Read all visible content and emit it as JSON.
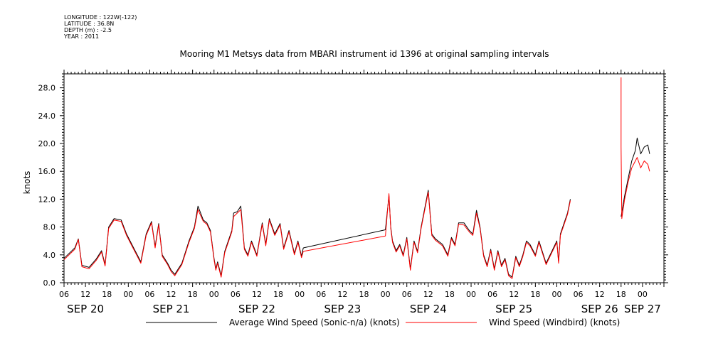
{
  "header": {
    "longitude": "LONGITUDE : 122W(-122)",
    "latitude": "LATITUDE : 36.8N",
    "depth": "DEPTH (m) : -2.5",
    "year": "YEAR : 2011"
  },
  "chart_data": {
    "type": "line",
    "title": "Mooring M1 Metsys data from MBARI instrument id 1396 at original sampling intervals",
    "ylabel": "knots",
    "xlabel": "",
    "ylim": [
      0,
      30
    ],
    "xlim_hours": [
      -18,
      150
    ],
    "y_ticks": [
      "0.0",
      "4.0",
      "8.0",
      "12.0",
      "16.0",
      "20.0",
      "24.0",
      "28.0"
    ],
    "x_hour_ticks": [
      {
        "h": -18,
        "label": "06"
      },
      {
        "h": -12,
        "label": "12"
      },
      {
        "h": -6,
        "label": "18"
      },
      {
        "h": 0,
        "label": "00"
      },
      {
        "h": 6,
        "label": "06"
      },
      {
        "h": 12,
        "label": "12"
      },
      {
        "h": 18,
        "label": "18"
      },
      {
        "h": 24,
        "label": "00"
      },
      {
        "h": 30,
        "label": "06"
      },
      {
        "h": 36,
        "label": "12"
      },
      {
        "h": 42,
        "label": "18"
      },
      {
        "h": 48,
        "label": "00"
      },
      {
        "h": 54,
        "label": "06"
      },
      {
        "h": 60,
        "label": "12"
      },
      {
        "h": 66,
        "label": "18"
      },
      {
        "h": 72,
        "label": "00"
      },
      {
        "h": 78,
        "label": "06"
      },
      {
        "h": 84,
        "label": "12"
      },
      {
        "h": 90,
        "label": "18"
      },
      {
        "h": 96,
        "label": "00"
      },
      {
        "h": 102,
        "label": "06"
      },
      {
        "h": 108,
        "label": "12"
      },
      {
        "h": 114,
        "label": "18"
      },
      {
        "h": 120,
        "label": "00"
      },
      {
        "h": 126,
        "label": "06"
      },
      {
        "h": 132,
        "label": "12"
      },
      {
        "h": 138,
        "label": "18"
      },
      {
        "h": 144,
        "label": "00"
      }
    ],
    "day_labels": [
      {
        "h": -12,
        "label": "SEP 20"
      },
      {
        "h": 12,
        "label": "SEP 21"
      },
      {
        "h": 36,
        "label": "SEP 22"
      },
      {
        "h": 60,
        "label": "SEP 23"
      },
      {
        "h": 84,
        "label": "SEP 24"
      },
      {
        "h": 108,
        "label": "SEP 25"
      },
      {
        "h": 132,
        "label": "SEP 26"
      },
      {
        "h": 144,
        "label": "SEP 27"
      }
    ],
    "series": [
      {
        "name": "Average Wind Speed (Sonic-n/a) (knots)",
        "color": "#000000",
        "segments": [
          [
            [
              -18,
              3.5
            ],
            [
              -15,
              5.0
            ],
            [
              -14,
              6.3
            ],
            [
              -13,
              2.5
            ],
            [
              -11,
              2.2
            ],
            [
              -9,
              3.4
            ],
            [
              -7.5,
              4.6
            ],
            [
              -6.5,
              2.6
            ],
            [
              -5.5,
              8.0
            ],
            [
              -4,
              9.2
            ],
            [
              -2,
              9.0
            ],
            [
              -0.5,
              7.0
            ],
            [
              1,
              5.5
            ],
            [
              2.5,
              4.0
            ],
            [
              3.5,
              3.0
            ],
            [
              5,
              7.0
            ],
            [
              6.5,
              8.8
            ],
            [
              7.5,
              5.2
            ],
            [
              8.5,
              8.5
            ],
            [
              9.5,
              4.0
            ],
            [
              11,
              2.8
            ],
            [
              12,
              1.8
            ],
            [
              13,
              1.2
            ],
            [
              15,
              2.8
            ],
            [
              17,
              6.0
            ],
            [
              18.5,
              8.0
            ],
            [
              19.5,
              11.0
            ],
            [
              21,
              9.0
            ],
            [
              22,
              8.6
            ],
            [
              23,
              7.5
            ],
            [
              24,
              3.5
            ],
            [
              24.5,
              2.0
            ],
            [
              25,
              3.0
            ],
            [
              26,
              1.0
            ],
            [
              27,
              4.5
            ],
            [
              28,
              6.0
            ],
            [
              29,
              7.5
            ],
            [
              29.5,
              10.0
            ],
            [
              30.5,
              10.2
            ],
            [
              31.5,
              11.0
            ],
            [
              32.5,
              5.0
            ],
            [
              33.5,
              4.0
            ],
            [
              34.5,
              6.0
            ],
            [
              36,
              4.0
            ],
            [
              37.5,
              8.6
            ],
            [
              38.5,
              5.5
            ],
            [
              39.5,
              9.2
            ],
            [
              41,
              7.0
            ],
            [
              42.5,
              8.5
            ],
            [
              43.5,
              5.0
            ],
            [
              45,
              7.5
            ],
            [
              46.5,
              4.2
            ],
            [
              47.5,
              6.0
            ],
            [
              48.5,
              3.8
            ],
            [
              49,
              5.0
            ]
          ],
          [
            [
              49,
              5.0
            ],
            [
              72,
              7.6
            ]
          ],
          [
            [
              72,
              7.6
            ],
            [
              73,
              12.5
            ],
            [
              73.5,
              8.0
            ],
            [
              74,
              6.0
            ],
            [
              75,
              4.6
            ],
            [
              76,
              5.5
            ],
            [
              77,
              4.0
            ],
            [
              78,
              6.5
            ],
            [
              79,
              2.0
            ],
            [
              80,
              6.0
            ],
            [
              81,
              4.5
            ],
            [
              82,
              8.0
            ],
            [
              84,
              13.3
            ],
            [
              85,
              7.0
            ],
            [
              86,
              6.3
            ],
            [
              88,
              5.5
            ],
            [
              89.5,
              4.0
            ],
            [
              90.5,
              6.5
            ],
            [
              91.5,
              5.5
            ],
            [
              92.5,
              8.6
            ],
            [
              94,
              8.6
            ],
            [
              95.5,
              7.5
            ],
            [
              96.5,
              7.0
            ],
            [
              97.5,
              10.4
            ],
            [
              98.5,
              8.0
            ],
            [
              99.5,
              4.0
            ],
            [
              100.5,
              2.5
            ],
            [
              101.5,
              4.8
            ],
            [
              102.5,
              2.0
            ],
            [
              103.5,
              4.6
            ],
            [
              104.5,
              2.5
            ],
            [
              105.5,
              3.5
            ],
            [
              106.5,
              1.2
            ],
            [
              107.5,
              0.8
            ],
            [
              108.5,
              3.8
            ],
            [
              109.5,
              2.5
            ],
            [
              110.5,
              4.0
            ],
            [
              111.5,
              6.0
            ],
            [
              112.5,
              5.5
            ],
            [
              114,
              4.0
            ],
            [
              115,
              6.0
            ],
            [
              117,
              2.8
            ],
            [
              120,
              6.0
            ],
            [
              120.5,
              3.0
            ],
            [
              121,
              7.0
            ],
            [
              122,
              8.5
            ],
            [
              123,
              10.0
            ],
            [
              123.8,
              12.0
            ]
          ],
          [
            [
              138,
              9.5
            ],
            [
              139,
              12.5
            ],
            [
              140,
              15.0
            ],
            [
              141,
              17.5
            ],
            [
              142,
              19.0
            ],
            [
              142.5,
              20.8
            ],
            [
              143.5,
              18.5
            ],
            [
              144.5,
              19.5
            ],
            [
              145.5,
              19.8
            ],
            [
              146,
              18.5
            ]
          ]
        ]
      },
      {
        "name": "Wind Speed (Windbird) (knots)",
        "color": "#ff0000",
        "segments": [
          [
            [
              -18,
              3.3
            ],
            [
              -15,
              4.8
            ],
            [
              -14,
              6.2
            ],
            [
              -13,
              2.3
            ],
            [
              -11,
              2.0
            ],
            [
              -9,
              3.2
            ],
            [
              -7.5,
              4.4
            ],
            [
              -6.5,
              2.4
            ],
            [
              -5.5,
              7.8
            ],
            [
              -4,
              9.0
            ],
            [
              -2,
              8.8
            ],
            [
              -0.5,
              6.8
            ],
            [
              1,
              5.3
            ],
            [
              2.5,
              3.8
            ],
            [
              3.5,
              2.8
            ],
            [
              5,
              6.8
            ],
            [
              6.5,
              8.6
            ],
            [
              7.5,
              5.0
            ],
            [
              8.5,
              8.3
            ],
            [
              9.5,
              3.8
            ],
            [
              11,
              2.6
            ],
            [
              12,
              1.6
            ],
            [
              13,
              1.0
            ],
            [
              15,
              2.6
            ],
            [
              17,
              5.8
            ],
            [
              18.5,
              7.8
            ],
            [
              19.5,
              10.5
            ],
            [
              21,
              8.8
            ],
            [
              22,
              8.4
            ],
            [
              23,
              7.3
            ],
            [
              24,
              3.3
            ],
            [
              24.5,
              1.8
            ],
            [
              25,
              2.8
            ],
            [
              26,
              0.8
            ],
            [
              27,
              4.3
            ],
            [
              28,
              5.8
            ],
            [
              29,
              7.3
            ],
            [
              29.5,
              9.5
            ],
            [
              30.5,
              10.0
            ],
            [
              31.5,
              10.5
            ],
            [
              32.5,
              4.8
            ],
            [
              33.5,
              3.8
            ],
            [
              34.5,
              5.8
            ],
            [
              36,
              3.8
            ],
            [
              37.5,
              8.4
            ],
            [
              38.5,
              5.3
            ],
            [
              39.5,
              9.0
            ],
            [
              41,
              6.8
            ],
            [
              42.5,
              8.3
            ],
            [
              43.5,
              4.8
            ],
            [
              45,
              7.3
            ],
            [
              46.5,
              4.0
            ],
            [
              47.5,
              5.8
            ],
            [
              48.5,
              3.6
            ],
            [
              49,
              4.5
            ]
          ],
          [
            [
              49,
              4.5
            ],
            [
              72,
              6.7
            ]
          ],
          [
            [
              72,
              6.7
            ],
            [
              73,
              12.8
            ],
            [
              73.5,
              7.8
            ],
            [
              74,
              5.8
            ],
            [
              75,
              4.4
            ],
            [
              76,
              5.3
            ],
            [
              77,
              3.8
            ],
            [
              78,
              6.3
            ],
            [
              79,
              1.8
            ],
            [
              80,
              5.8
            ],
            [
              81,
              4.3
            ],
            [
              82,
              7.8
            ],
            [
              84,
              13.0
            ],
            [
              85,
              6.8
            ],
            [
              86,
              6.1
            ],
            [
              88,
              5.3
            ],
            [
              89.5,
              3.8
            ],
            [
              90.5,
              6.3
            ],
            [
              91.5,
              5.3
            ],
            [
              92.5,
              8.4
            ],
            [
              94,
              8.3
            ],
            [
              95.5,
              7.3
            ],
            [
              96.5,
              6.8
            ],
            [
              97.5,
              10.0
            ],
            [
              98.5,
              7.8
            ],
            [
              99.5,
              3.8
            ],
            [
              100.5,
              2.3
            ],
            [
              101.5,
              4.6
            ],
            [
              102.5,
              1.8
            ],
            [
              103.5,
              4.4
            ],
            [
              104.5,
              2.3
            ],
            [
              105.5,
              3.3
            ],
            [
              106.5,
              1.0
            ],
            [
              107.5,
              0.6
            ],
            [
              108.5,
              3.6
            ],
            [
              109.5,
              2.3
            ],
            [
              110.5,
              3.8
            ],
            [
              111.5,
              5.8
            ],
            [
              112.5,
              5.3
            ],
            [
              114,
              3.8
            ],
            [
              115,
              5.8
            ],
            [
              117,
              2.6
            ],
            [
              120,
              5.8
            ],
            [
              120.5,
              2.8
            ],
            [
              121,
              6.8
            ],
            [
              122,
              8.3
            ],
            [
              123,
              9.8
            ],
            [
              123.8,
              11.8
            ]
          ],
          [
            [
              138,
              29.5
            ],
            [
              138,
              19.5
            ],
            [
              138.2,
              9.2
            ],
            [
              139,
              12.0
            ],
            [
              140,
              14.5
            ],
            [
              141,
              16.5
            ],
            [
              142,
              17.5
            ],
            [
              142.5,
              18.0
            ],
            [
              143.5,
              16.5
            ],
            [
              144.5,
              17.5
            ],
            [
              145.5,
              17.0
            ],
            [
              146,
              16.0
            ]
          ]
        ]
      }
    ]
  }
}
